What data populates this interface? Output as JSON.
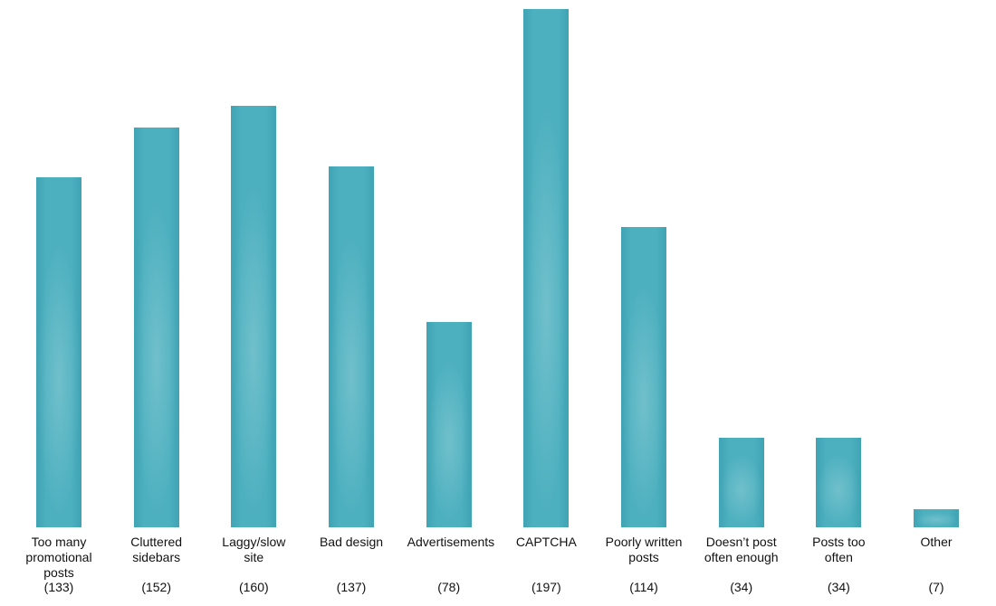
{
  "chart_data": {
    "type": "bar",
    "title": "",
    "xlabel": "",
    "ylabel": "",
    "categories": [
      "Too many promotional posts",
      "Cluttered sidebars",
      "Laggy/slow site",
      "Bad design",
      "Advertisements",
      "CAPTCHA",
      "Poorly written posts",
      "Doesn’t post often enough",
      "Posts too often",
      "Other"
    ],
    "values": [
      133,
      152,
      160,
      137,
      78,
      197,
      114,
      34,
      34,
      7
    ],
    "count_labels": [
      "(133)",
      "(152)",
      "(160)",
      "(137)",
      "(78)",
      "(197)",
      "(114)",
      "(34)",
      "(34)",
      "(7)"
    ],
    "ylim": [
      0,
      200
    ],
    "grid": false,
    "legend": "none",
    "axes_visible": false,
    "bar_color": "#48abba",
    "bar_color_light": "#55b7c4",
    "bar_color_dark": "#3fa3b4",
    "text_color": "#111111",
    "background_color": "#ffffff"
  }
}
